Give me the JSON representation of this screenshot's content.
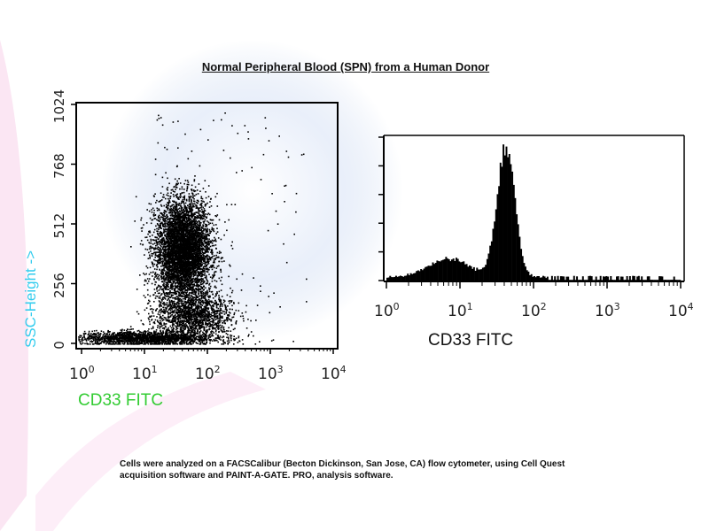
{
  "title": "Normal Peripheral Blood (SPN) from a Human Donor",
  "caption": {
    "line1": "Cells were analyzed on a FACSCalibur (Becton Dickinson, San Jose, CA) flow cytometer, using Cell Quest",
    "line2": "acquisition software and PAINT-A-GATE. PRO, analysis software."
  },
  "colors": {
    "ylabel": "#33ccee",
    "xlabel_left": "#33cc33",
    "ink": "#000000"
  },
  "chart_data": [
    {
      "type": "scatter",
      "xlabel": "CD33 FITC",
      "ylabel": "SSC-Height ->",
      "x_scale": "log",
      "xlim": [
        1,
        10000
      ],
      "ylim": [
        0,
        1024
      ],
      "x_ticks": [
        {
          "base": "10",
          "exp": "0"
        },
        {
          "base": "10",
          "exp": "1"
        },
        {
          "base": "10",
          "exp": "2"
        },
        {
          "base": "10",
          "exp": "3"
        },
        {
          "base": "10",
          "exp": "4"
        }
      ],
      "y_ticks": [
        "0",
        "256",
        "512",
        "768",
        "1024"
      ],
      "clusters": [
        {
          "x_center": 40,
          "y_center": 400,
          "x_spread_decades": 0.22,
          "y_spread": 110,
          "count": 5500
        },
        {
          "x_center": 60,
          "y_center": 120,
          "x_spread_decades": 0.3,
          "y_spread": 50,
          "count": 1500
        },
        {
          "x_center": 10,
          "y_center": 25,
          "x_spread_decades": 0.55,
          "y_spread": 15,
          "count": 1800
        }
      ]
    },
    {
      "type": "bar",
      "subtype": "histogram",
      "xlabel": "CD33 FITC",
      "x_scale": "log",
      "xlim": [
        1,
        10000
      ],
      "x_ticks": [
        {
          "base": "10",
          "exp": "0"
        },
        {
          "base": "10",
          "exp": "1"
        },
        {
          "base": "10",
          "exp": "2"
        },
        {
          "base": "10",
          "exp": "3"
        },
        {
          "base": "10",
          "exp": "4"
        }
      ],
      "peaks": [
        {
          "x_center": 7,
          "height_fraction": 0.13,
          "width_decades": 0.28
        },
        {
          "x_center": 42,
          "height_fraction": 0.94,
          "width_decades": 0.12
        }
      ]
    }
  ]
}
